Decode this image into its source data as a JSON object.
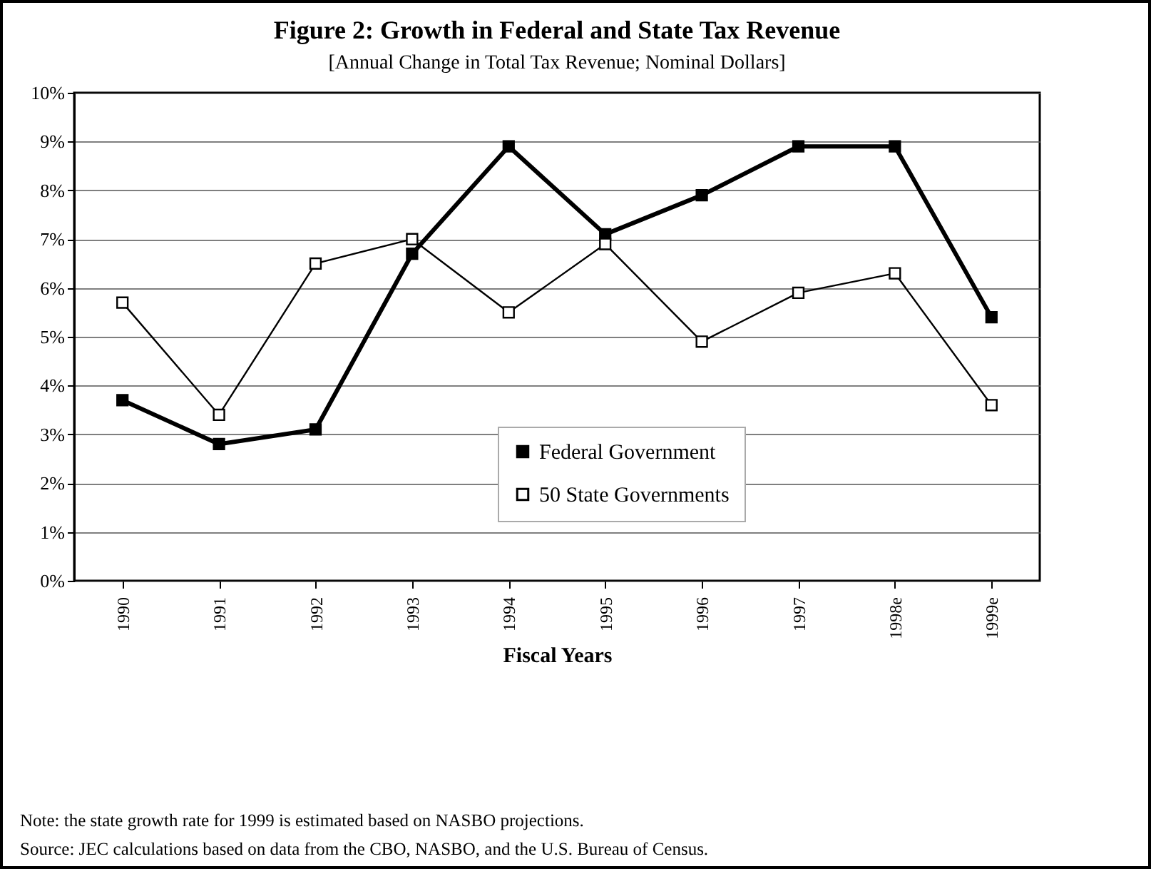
{
  "chart_data": {
    "type": "line",
    "title": "Figure 2: Growth in Federal and State Tax Revenue",
    "subtitle": "[Annual Change in Total Tax Revenue; Nominal Dollars]",
    "xlabel": "Fiscal Years",
    "categories": [
      "1990",
      "1991",
      "1992",
      "1993",
      "1994",
      "1995",
      "1996",
      "1997",
      "1998e",
      "1999e"
    ],
    "series": [
      {
        "name": "Federal Government",
        "color": "#000000",
        "values": [
          3.7,
          2.8,
          3.1,
          6.7,
          8.9,
          7.1,
          7.9,
          8.9,
          8.9,
          5.4
        ]
      },
      {
        "name": "50 State Governments",
        "color": "#000000",
        "values": [
          5.7,
          3.4,
          6.5,
          7.0,
          5.5,
          6.9,
          4.9,
          5.9,
          6.3,
          3.6
        ]
      }
    ],
    "ylim": [
      0,
      10
    ],
    "yticks": [
      {
        "value": 0,
        "label": "0%"
      },
      {
        "value": 1,
        "label": "1%"
      },
      {
        "value": 2,
        "label": "2%"
      },
      {
        "value": 3,
        "label": "3%"
      },
      {
        "value": 4,
        "label": "4%"
      },
      {
        "value": 5,
        "label": "5%"
      },
      {
        "value": 6,
        "label": "6%"
      },
      {
        "value": 7,
        "label": "7%"
      },
      {
        "value": 8,
        "label": "8%"
      },
      {
        "value": 9,
        "label": "9%"
      },
      {
        "value": 10,
        "label": "10%"
      }
    ],
    "grid": "y",
    "legend": "bottom right",
    "marker": "square",
    "line_style": "solid",
    "annotations": [
      "Note: the state growth rate for 1999 is estimated based on NASBO projections.",
      "Source: JEC calculations based on data from the CBO, NASBO, and the U.S. Bureau of Census."
    ]
  }
}
